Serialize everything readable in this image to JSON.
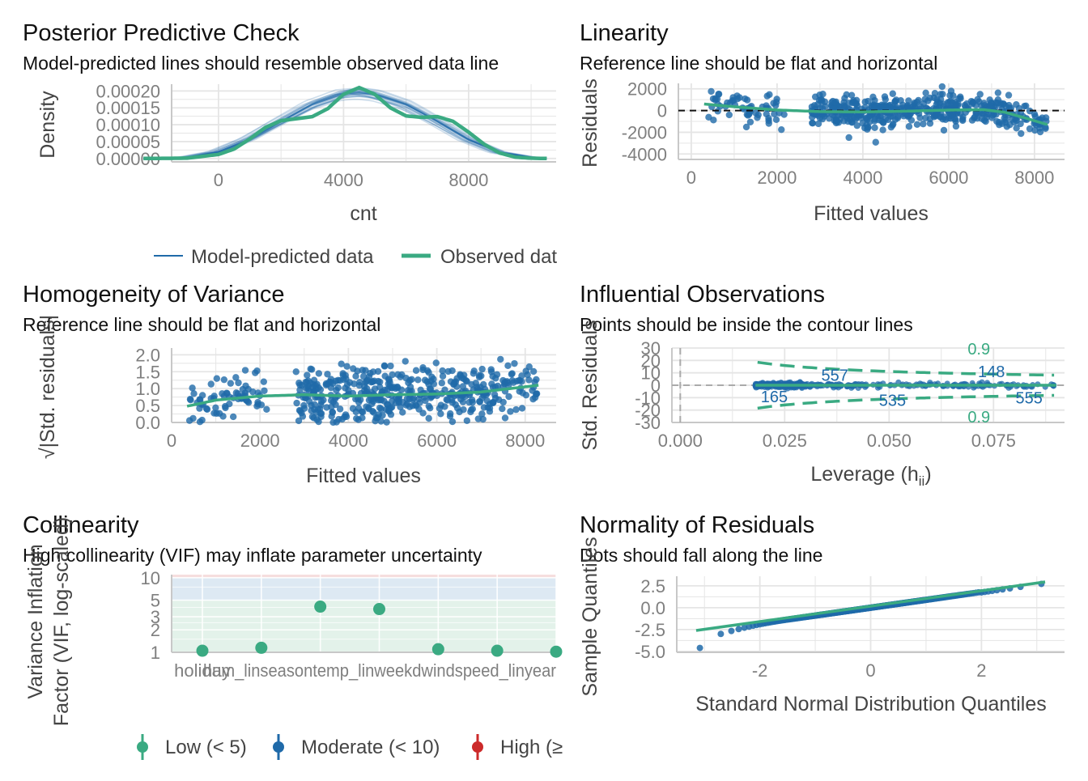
{
  "colors": {
    "blue": "#1f6aa9",
    "green": "#3aaa82",
    "grid": "#e5e5e5",
    "axis": "#c8c8c8",
    "tick": "#7f7f7f",
    "text": "#222222",
    "red": "#cc2a2a",
    "band_green": "#e3f2ea",
    "band_blue": "#dde9f3",
    "band_red": "#f6dede"
  },
  "chart_data": [
    {
      "id": "ppc",
      "type": "line",
      "title": "Posterior Predictive Check",
      "subtitle": "Model-predicted lines should resemble observed data line",
      "xlabel": "cnt",
      "ylabel": "Density",
      "xlim": [
        -1500,
        10800
      ],
      "ylim": [
        -1e-05,
        0.00022
      ],
      "xticks": [
        0,
        4000,
        8000
      ],
      "xtick_labels": [
        "0",
        "4000",
        "8000"
      ],
      "yticks": [
        0,
        5e-05,
        0.0001,
        0.00015,
        0.0002
      ],
      "ytick_labels": [
        "0.00000",
        "0.00005",
        "0.00010",
        "0.00015",
        "0.00020"
      ],
      "legend": [
        "Model-predicted data",
        "Observed dat"
      ],
      "legend_position": "bottom",
      "series": [
        {
          "name": "Observed dat",
          "x": [
            -2400,
            -1000,
            0,
            500,
            1000,
            1500,
            2000,
            2500,
            3000,
            3500,
            4000,
            4500,
            5000,
            5500,
            6000,
            6500,
            7000,
            7500,
            8000,
            8500,
            9000,
            9500,
            10000,
            10500
          ],
          "y": [
            0.0,
            1e-06,
            1.2e-05,
            2.8e-05,
            5.8e-05,
            9.2e-05,
            0.000112,
            0.000118,
            0.000124,
            0.000148,
            0.00019,
            0.00021,
            0.00019,
            0.00015,
            0.000126,
            0.000122,
            0.000124,
            0.00011,
            7.8e-05,
            4.2e-05,
            1.6e-05,
            4e-06,
            1e-06,
            0.0
          ]
        },
        {
          "name": "Model-predicted data",
          "x": [
            -2400,
            -1000,
            0,
            1000,
            2000,
            3000,
            4000,
            4500,
            5000,
            6000,
            7000,
            8000,
            9000,
            10000,
            10500
          ],
          "y": [
            0.0,
            3e-06,
            2e-05,
            5.8e-05,
            0.00011,
            0.00016,
            0.000192,
            0.000196,
            0.00019,
            0.00016,
            0.00011,
            5.6e-05,
            1.8e-05,
            3e-06,
            0.0
          ]
        }
      ]
    },
    {
      "id": "linearity",
      "type": "scatter",
      "title": "Linearity",
      "subtitle": "Reference line should be flat and horizontal",
      "xlabel": "Fitted values",
      "ylabel": "Residuals",
      "xlim": [
        -300,
        8700
      ],
      "ylim": [
        -4500,
        2500
      ],
      "xticks": [
        0,
        2000,
        4000,
        6000,
        8000
      ],
      "xtick_labels": [
        "0",
        "2000",
        "4000",
        "6000",
        "8000"
      ],
      "yticks": [
        -4000,
        -2000,
        0,
        2000
      ],
      "ytick_labels": [
        "-4000",
        "-2000",
        "0",
        "2000"
      ],
      "reference_line_y": 0,
      "smooth": {
        "x": [
          300,
          1000,
          2000,
          3000,
          4000,
          5000,
          6000,
          6800,
          7300,
          7800,
          8300
        ],
        "y": [
          600,
          350,
          50,
          -100,
          -120,
          -60,
          40,
          80,
          -150,
          -700,
          -1300
        ]
      }
    },
    {
      "id": "homogeneity",
      "type": "scatter",
      "title": "Homogeneity of Variance",
      "subtitle": "Reference line should be flat and horizontal",
      "xlabel": "Fitted values",
      "ylabel": "√|Std. residuals|",
      "xlim": [
        0,
        8700
      ],
      "ylim": [
        0,
        2.2
      ],
      "xticks": [
        0,
        2000,
        4000,
        6000,
        8000
      ],
      "xtick_labels": [
        "0",
        "2000",
        "4000",
        "6000",
        "8000"
      ],
      "yticks": [
        0,
        0.5,
        1.0,
        1.5,
        2.0
      ],
      "ytick_labels": [
        "0.0",
        "0.5",
        "1.0",
        "1.5",
        "2.0"
      ],
      "smooth": {
        "x": [
          350,
          1000,
          2000,
          3000,
          4000,
          5000,
          6000,
          7000,
          8300
        ],
        "y": [
          0.48,
          0.66,
          0.78,
          0.82,
          0.78,
          0.82,
          0.84,
          0.9,
          1.1
        ]
      }
    },
    {
      "id": "influential",
      "type": "scatter",
      "title": "Influential Observations",
      "subtitle": "Points should be inside the contour lines",
      "xlabel": "Leverage (h",
      "xlabel_sub": "ii",
      "xlabel_end": ")",
      "ylabel": "Std. Residuals",
      "xlim": [
        -0.002,
        0.092
      ],
      "ylim": [
        -30,
        30
      ],
      "xticks": [
        0,
        0.025,
        0.05,
        0.075
      ],
      "xtick_labels": [
        "0.000",
        "0.025",
        "0.050",
        "0.075"
      ],
      "yticks": [
        -30,
        -20,
        -10,
        0,
        10,
        20,
        30
      ],
      "ytick_labels": [
        "-30",
        "-20",
        "-10",
        "0",
        "10",
        "20",
        "30"
      ],
      "contour_label_top": "0.9",
      "contour_label_bottom": "0.9",
      "point_labels": [
        {
          "text": "557",
          "x": 0.037,
          "y": 8
        },
        {
          "text": "148",
          "x": 0.0745,
          "y": 11
        },
        {
          "text": "165",
          "x": 0.0225,
          "y": -9
        },
        {
          "text": "535",
          "x": 0.0508,
          "y": -12
        },
        {
          "text": "555",
          "x": 0.0835,
          "y": -10
        }
      ]
    },
    {
      "id": "collinearity",
      "type": "scatter",
      "title": "Collinearity",
      "subtitle": "High collinearity (VIF) may inflate parameter uncertainty",
      "ylabel": "Variance Inflation\nFactor (VIF, log-scaled)",
      "log_scale": true,
      "ylim": [
        1,
        11
      ],
      "yticks": [
        1,
        2,
        3,
        5,
        10
      ],
      "ytick_labels": [
        "1",
        "2",
        "3",
        "5",
        "10"
      ],
      "categories": [
        "holiday",
        "hum_lin",
        "season",
        "temp_lin",
        "weekday",
        "windspeed_lin",
        "year"
      ],
      "category_labels": [
        "holiday",
        "hum_linseasontemp_linweekdwindspeed_linyear"
      ],
      "values": [
        1.05,
        1.15,
        4.1,
        3.8,
        1.1,
        1.05,
        1.02
      ],
      "legend": [
        "Low (< 5)",
        "Moderate (< 10)",
        "High (≥"
      ],
      "legend_position": "bottom"
    },
    {
      "id": "normality",
      "type": "scatter",
      "title": "Normality of Residuals",
      "subtitle": "Dots should fall along the line",
      "xlabel": "Standard Normal Distribution Quantiles",
      "ylabel": "Sample Quantiles",
      "xlim": [
        -3.5,
        3.5
      ],
      "ylim": [
        -5.1,
        3.6
      ],
      "xticks": [
        -2,
        0,
        2
      ],
      "xtick_labels": [
        "-2",
        "0",
        "2"
      ],
      "yticks": [
        -5,
        -2.5,
        0,
        2.5
      ],
      "ytick_labels": [
        "-5.0",
        "-2.5",
        "0.0",
        "2.5"
      ],
      "line": {
        "x": [
          -3.15,
          3.15
        ],
        "y": [
          -2.6,
          2.95
        ]
      }
    }
  ]
}
